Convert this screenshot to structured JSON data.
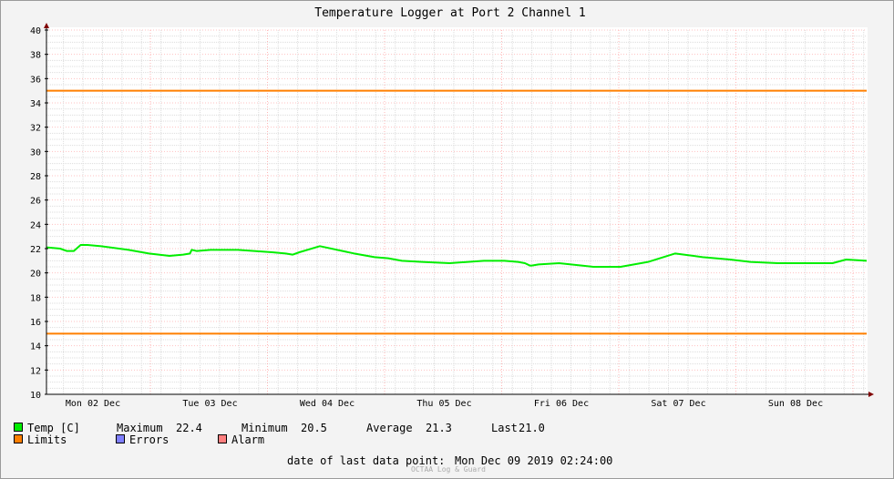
{
  "chart_data": {
    "type": "line",
    "title": "Temperature Logger at Port 2 Channel 1",
    "ylim": [
      10,
      40
    ],
    "y_ticks": [
      10,
      12,
      14,
      16,
      18,
      20,
      22,
      24,
      26,
      28,
      30,
      32,
      34,
      36,
      38,
      40
    ],
    "x_labels": [
      "Mon 02 Dec",
      "Tue 03 Dec",
      "Wed 04 Dec",
      "Thu 05 Dec",
      "Fri 06 Dec",
      "Sat 07 Dec",
      "Sun 08 Dec"
    ],
    "grid": true,
    "limits": {
      "upper": 35,
      "lower": 15,
      "color": "#ff7f00"
    },
    "series": [
      {
        "name": "Temp [C]",
        "color": "#00ee00",
        "x_hours": [
          0,
          4,
          6,
          8,
          10,
          12,
          16,
          24,
          30,
          36,
          40,
          42,
          42.5,
          44,
          48,
          56,
          66,
          70,
          72,
          74,
          80,
          90,
          96,
          100,
          104,
          110,
          118,
          128,
          134,
          138,
          140,
          141.5,
          142,
          144,
          150,
          160,
          168,
          176,
          184,
          192,
          200,
          206,
          214,
          222,
          230,
          234,
          240
        ],
        "values": [
          22.1,
          22.0,
          21.8,
          21.8,
          22.3,
          22.3,
          22.2,
          21.9,
          21.6,
          21.4,
          21.5,
          21.6,
          21.9,
          21.8,
          21.9,
          21.9,
          21.7,
          21.6,
          21.5,
          21.7,
          22.2,
          21.6,
          21.3,
          21.2,
          21.0,
          20.9,
          20.8,
          21.0,
          21.0,
          20.9,
          20.8,
          20.6,
          20.6,
          20.7,
          20.8,
          20.5,
          20.5,
          20.9,
          21.6,
          21.3,
          21.1,
          20.9,
          20.8,
          20.8,
          20.8,
          21.1,
          21.0
        ]
      }
    ]
  },
  "stats": {
    "maximum_label": "Maximum",
    "maximum": "22.4",
    "minimum_label": "Minimum",
    "minimum": "20.5",
    "average_label": "Average",
    "average": "21.3",
    "last_label": "Last",
    "last": "21.0"
  },
  "legend": {
    "temp": {
      "label": "Temp [C]",
      "color": "#00ee00"
    },
    "limits": {
      "label": "Limits",
      "color": "#ff7f00"
    },
    "errors": {
      "label": "Errors",
      "color": "#7f7fff"
    },
    "alarm": {
      "label": "Alarm",
      "color": "#ff7f7f"
    }
  },
  "footer": {
    "last_point_label": "date of last data point:",
    "last_point_value": "Mon Dec 09 2019 02:24:00",
    "credit": "OCTAA Log & Guard"
  }
}
